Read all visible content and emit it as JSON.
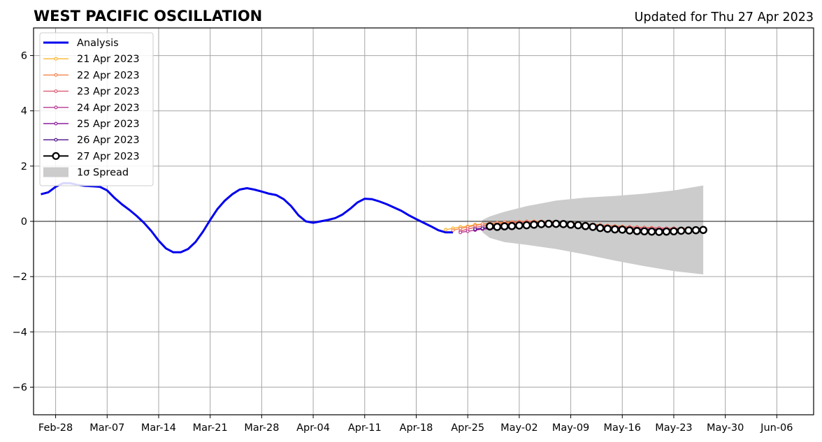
{
  "chart_data": {
    "type": "line",
    "title": "WEST PACIFIC OSCILLATION",
    "subtitle": "Updated for Thu 27 Apr 2023",
    "xlabel": "",
    "ylabel": "",
    "x_range": [
      "2023-02-25",
      "2023-06-11"
    ],
    "ylim": [
      -7,
      7
    ],
    "grid": true,
    "legend_position": "top-left",
    "x_tick_labels": [
      "Feb-28",
      "Mar-07",
      "Mar-14",
      "Mar-21",
      "Mar-28",
      "Apr-04",
      "Apr-11",
      "Apr-18",
      "Apr-25",
      "May-02",
      "May-09",
      "May-16",
      "May-23",
      "May-30",
      "Jun-06"
    ],
    "x_tick_dates": [
      "2023-02-28",
      "2023-03-07",
      "2023-03-14",
      "2023-03-21",
      "2023-03-28",
      "2023-04-04",
      "2023-04-11",
      "2023-04-18",
      "2023-04-25",
      "2023-05-02",
      "2023-05-09",
      "2023-05-16",
      "2023-05-23",
      "2023-05-30",
      "2023-06-06"
    ],
    "y_tick_values": [
      -6,
      -4,
      -2,
      0,
      2,
      4,
      6
    ],
    "y_tick_labels": [
      "−6",
      "−4",
      "−2",
      "0",
      "2",
      "4",
      "6"
    ],
    "analysis": {
      "name": "Analysis",
      "color": "#0000ee",
      "x": [
        "2023-02-26",
        "2023-02-27",
        "2023-02-28",
        "2023-03-01",
        "2023-03-02",
        "2023-03-03",
        "2023-03-04",
        "2023-03-05",
        "2023-03-06",
        "2023-03-07",
        "2023-03-08",
        "2023-03-09",
        "2023-03-10",
        "2023-03-11",
        "2023-03-12",
        "2023-03-13",
        "2023-03-14",
        "2023-03-15",
        "2023-03-16",
        "2023-03-17",
        "2023-03-18",
        "2023-03-19",
        "2023-03-20",
        "2023-03-21",
        "2023-03-22",
        "2023-03-23",
        "2023-03-24",
        "2023-03-25",
        "2023-03-26",
        "2023-03-27",
        "2023-03-28",
        "2023-03-29",
        "2023-03-30",
        "2023-03-31",
        "2023-04-01",
        "2023-04-02",
        "2023-04-03",
        "2023-04-04",
        "2023-04-05",
        "2023-04-06",
        "2023-04-07",
        "2023-04-08",
        "2023-04-09",
        "2023-04-10",
        "2023-04-11",
        "2023-04-12",
        "2023-04-13",
        "2023-04-14",
        "2023-04-15",
        "2023-04-16",
        "2023-04-17",
        "2023-04-18",
        "2023-04-19",
        "2023-04-20",
        "2023-04-21",
        "2023-04-22",
        "2023-04-23"
      ],
      "y": [
        0.98,
        1.05,
        1.25,
        1.38,
        1.38,
        1.32,
        1.28,
        1.27,
        1.25,
        1.12,
        0.85,
        0.62,
        0.42,
        0.2,
        -0.05,
        -0.35,
        -0.7,
        -0.98,
        -1.12,
        -1.12,
        -1.0,
        -0.75,
        -0.38,
        0.05,
        0.45,
        0.75,
        0.98,
        1.15,
        1.2,
        1.15,
        1.08,
        1.0,
        0.95,
        0.8,
        0.55,
        0.22,
        0.0,
        -0.05,
        0.0,
        0.05,
        0.12,
        0.25,
        0.45,
        0.68,
        0.82,
        0.8,
        0.72,
        0.62,
        0.5,
        0.38,
        0.22,
        0.08,
        -0.05,
        -0.18,
        -0.32,
        -0.4,
        -0.4
      ]
    },
    "forecasts": [
      {
        "name": "21 Apr 2023",
        "color": "#fdb42f",
        "x": [
          "2023-04-22",
          "2023-04-23",
          "2023-04-24",
          "2023-04-25",
          "2023-04-26",
          "2023-04-27",
          "2023-04-28",
          "2023-04-29",
          "2023-04-30",
          "2023-05-01",
          "2023-05-02",
          "2023-05-03",
          "2023-05-04",
          "2023-05-05",
          "2023-05-06",
          "2023-05-07",
          "2023-05-08",
          "2023-05-09",
          "2023-05-10",
          "2023-05-11",
          "2023-05-12",
          "2023-05-13",
          "2023-05-14",
          "2023-05-15",
          "2023-05-16",
          "2023-05-17",
          "2023-05-18",
          "2023-05-19",
          "2023-05-20",
          "2023-05-21",
          "2023-05-22",
          "2023-05-23",
          "2023-05-24",
          "2023-05-25",
          "2023-05-26"
        ],
        "y": [
          -0.3,
          -0.25,
          -0.2,
          -0.18,
          -0.12,
          -0.1,
          -0.08,
          -0.06,
          -0.05,
          -0.03,
          -0.02,
          -0.01,
          0.0,
          0.0,
          -0.01,
          -0.02,
          -0.03,
          -0.05,
          -0.07,
          -0.09,
          -0.11,
          -0.13,
          -0.15,
          -0.17,
          -0.18,
          -0.2,
          -0.21,
          -0.22,
          -0.23,
          -0.24,
          -0.25,
          -0.25,
          -0.26,
          -0.26,
          -0.27
        ]
      },
      {
        "name": "22 Apr 2023",
        "color": "#f3834e",
        "x": [
          "2023-04-23",
          "2023-04-24",
          "2023-04-25",
          "2023-04-26",
          "2023-04-27",
          "2023-04-28",
          "2023-04-29",
          "2023-04-30",
          "2023-05-01",
          "2023-05-02",
          "2023-05-03",
          "2023-05-04",
          "2023-05-05",
          "2023-05-06",
          "2023-05-07",
          "2023-05-08",
          "2023-05-09",
          "2023-05-10",
          "2023-05-11",
          "2023-05-12",
          "2023-05-13",
          "2023-05-14",
          "2023-05-15",
          "2023-05-16",
          "2023-05-17",
          "2023-05-18",
          "2023-05-19",
          "2023-05-20",
          "2023-05-21",
          "2023-05-22",
          "2023-05-23",
          "2023-05-24",
          "2023-05-25"
        ],
        "y": [
          -0.32,
          -0.26,
          -0.2,
          -0.15,
          -0.1,
          -0.07,
          -0.05,
          -0.03,
          -0.02,
          -0.01,
          0.0,
          0.0,
          0.0,
          -0.01,
          -0.02,
          -0.03,
          -0.05,
          -0.07,
          -0.09,
          -0.11,
          -0.13,
          -0.15,
          -0.17,
          -0.19,
          -0.2,
          -0.21,
          -0.22,
          -0.23,
          -0.24,
          -0.25,
          -0.25,
          -0.26,
          -0.26
        ]
      },
      {
        "name": "23 Apr 2023",
        "color": "#dd5a71",
        "x": [
          "2023-04-24",
          "2023-04-25",
          "2023-04-26",
          "2023-04-27",
          "2023-04-28",
          "2023-04-29",
          "2023-04-30",
          "2023-05-01",
          "2023-05-02",
          "2023-05-03",
          "2023-05-04",
          "2023-05-05",
          "2023-05-06",
          "2023-05-07",
          "2023-05-08",
          "2023-05-09",
          "2023-05-10",
          "2023-05-11",
          "2023-05-12",
          "2023-05-13",
          "2023-05-14",
          "2023-05-15",
          "2023-05-16",
          "2023-05-17",
          "2023-05-18",
          "2023-05-19",
          "2023-05-20",
          "2023-05-21",
          "2023-05-22",
          "2023-05-23",
          "2023-05-24"
        ],
        "y": [
          -0.35,
          -0.28,
          -0.22,
          -0.18,
          -0.14,
          -0.1,
          -0.08,
          -0.06,
          -0.04,
          -0.03,
          -0.02,
          -0.02,
          -0.03,
          -0.04,
          -0.05,
          -0.07,
          -0.09,
          -0.11,
          -0.13,
          -0.15,
          -0.17,
          -0.19,
          -0.2,
          -0.21,
          -0.22,
          -0.23,
          -0.24,
          -0.24,
          -0.25,
          -0.25,
          -0.26
        ]
      },
      {
        "name": "24 Apr 2023",
        "color": "#b73894",
        "x": [
          "2023-04-24",
          "2023-04-25",
          "2023-04-26",
          "2023-04-27",
          "2023-04-28",
          "2023-04-29",
          "2023-04-30",
          "2023-05-01",
          "2023-05-02",
          "2023-05-03",
          "2023-05-04",
          "2023-05-05",
          "2023-05-06",
          "2023-05-07",
          "2023-05-08",
          "2023-05-09",
          "2023-05-10",
          "2023-05-11",
          "2023-05-12",
          "2023-05-13",
          "2023-05-14",
          "2023-05-15",
          "2023-05-16",
          "2023-05-17",
          "2023-05-18",
          "2023-05-19",
          "2023-05-20",
          "2023-05-21",
          "2023-05-22",
          "2023-05-23",
          "2023-05-24"
        ],
        "y": [
          -0.4,
          -0.36,
          -0.32,
          -0.28,
          -0.26,
          -0.24,
          -0.22,
          -0.2,
          -0.19,
          -0.18,
          -0.17,
          -0.16,
          -0.16,
          -0.16,
          -0.17,
          -0.18,
          -0.19,
          -0.2,
          -0.21,
          -0.22,
          -0.23,
          -0.24,
          -0.25,
          -0.26,
          -0.27,
          -0.28,
          -0.28,
          -0.29,
          -0.29,
          -0.3,
          -0.3
        ]
      },
      {
        "name": "25 Apr 2023",
        "color": "#8b1d9f",
        "x": [
          "2023-04-26",
          "2023-04-27",
          "2023-04-28",
          "2023-04-29",
          "2023-04-30",
          "2023-05-01",
          "2023-05-02",
          "2023-05-03",
          "2023-05-04",
          "2023-05-05",
          "2023-05-06",
          "2023-05-07",
          "2023-05-08",
          "2023-05-09",
          "2023-05-10",
          "2023-05-11",
          "2023-05-12",
          "2023-05-13",
          "2023-05-14",
          "2023-05-15",
          "2023-05-16",
          "2023-05-17",
          "2023-05-18",
          "2023-05-19",
          "2023-05-20",
          "2023-05-21",
          "2023-05-22",
          "2023-05-23",
          "2023-05-24",
          "2023-05-25"
        ],
        "y": [
          -0.3,
          -0.28,
          -0.27,
          -0.26,
          -0.25,
          -0.23,
          -0.21,
          -0.19,
          -0.17,
          -0.15,
          -0.14,
          -0.13,
          -0.13,
          -0.14,
          -0.15,
          -0.17,
          -0.19,
          -0.21,
          -0.23,
          -0.25,
          -0.26,
          -0.27,
          -0.28,
          -0.28,
          -0.29,
          -0.29,
          -0.3,
          -0.3,
          -0.3,
          -0.31
        ]
      },
      {
        "name": "26 Apr 2023",
        "color": "#4c0d8a",
        "x": [
          "2023-04-26",
          "2023-04-27",
          "2023-04-28",
          "2023-04-29",
          "2023-04-30",
          "2023-05-01",
          "2023-05-02",
          "2023-05-03",
          "2023-05-04",
          "2023-05-05",
          "2023-05-06",
          "2023-05-07",
          "2023-05-08",
          "2023-05-09",
          "2023-05-10",
          "2023-05-11",
          "2023-05-12",
          "2023-05-13",
          "2023-05-14",
          "2023-05-15",
          "2023-05-16",
          "2023-05-17",
          "2023-05-18",
          "2023-05-19",
          "2023-05-20",
          "2023-05-21",
          "2023-05-22",
          "2023-05-23",
          "2023-05-24",
          "2023-05-25"
        ],
        "y": [
          -0.28,
          -0.25,
          -0.22,
          -0.2,
          -0.18,
          -0.16,
          -0.14,
          -0.13,
          -0.12,
          -0.11,
          -0.11,
          -0.12,
          -0.13,
          -0.15,
          -0.17,
          -0.19,
          -0.21,
          -0.23,
          -0.25,
          -0.27,
          -0.28,
          -0.29,
          -0.3,
          -0.31,
          -0.31,
          -0.32,
          -0.32,
          -0.33,
          -0.33,
          -0.33
        ]
      },
      {
        "name": "27 Apr 2023",
        "color": "#000000",
        "x": [
          "2023-04-28",
          "2023-04-29",
          "2023-04-30",
          "2023-05-01",
          "2023-05-02",
          "2023-05-03",
          "2023-05-04",
          "2023-05-05",
          "2023-05-06",
          "2023-05-07",
          "2023-05-08",
          "2023-05-09",
          "2023-05-10",
          "2023-05-11",
          "2023-05-12",
          "2023-05-13",
          "2023-05-14",
          "2023-05-15",
          "2023-05-16",
          "2023-05-17",
          "2023-05-18",
          "2023-05-19",
          "2023-05-20",
          "2023-05-21",
          "2023-05-22",
          "2023-05-23",
          "2023-05-24",
          "2023-05-25",
          "2023-05-26",
          "2023-05-27"
        ],
        "y": [
          -0.18,
          -0.2,
          -0.18,
          -0.17,
          -0.15,
          -0.14,
          -0.12,
          -0.1,
          -0.09,
          -0.09,
          -0.1,
          -0.12,
          -0.14,
          -0.17,
          -0.2,
          -0.24,
          -0.27,
          -0.29,
          -0.3,
          -0.33,
          -0.35,
          -0.36,
          -0.37,
          -0.38,
          -0.37,
          -0.36,
          -0.34,
          -0.33,
          -0.32,
          -0.31
        ]
      }
    ],
    "spread": {
      "name": "1σ Spread",
      "color": "#cccccc",
      "x": [
        "2023-04-27",
        "2023-04-28",
        "2023-04-30",
        "2023-05-03",
        "2023-05-07",
        "2023-05-11",
        "2023-05-15",
        "2023-05-19",
        "2023-05-23",
        "2023-05-27"
      ],
      "upper": [
        0.05,
        0.18,
        0.35,
        0.55,
        0.75,
        0.86,
        0.92,
        1.0,
        1.12,
        1.3
      ],
      "lower": [
        -0.4,
        -0.6,
        -0.75,
        -0.85,
        -1.0,
        -1.2,
        -1.42,
        -1.62,
        -1.8,
        -1.92
      ]
    }
  }
}
